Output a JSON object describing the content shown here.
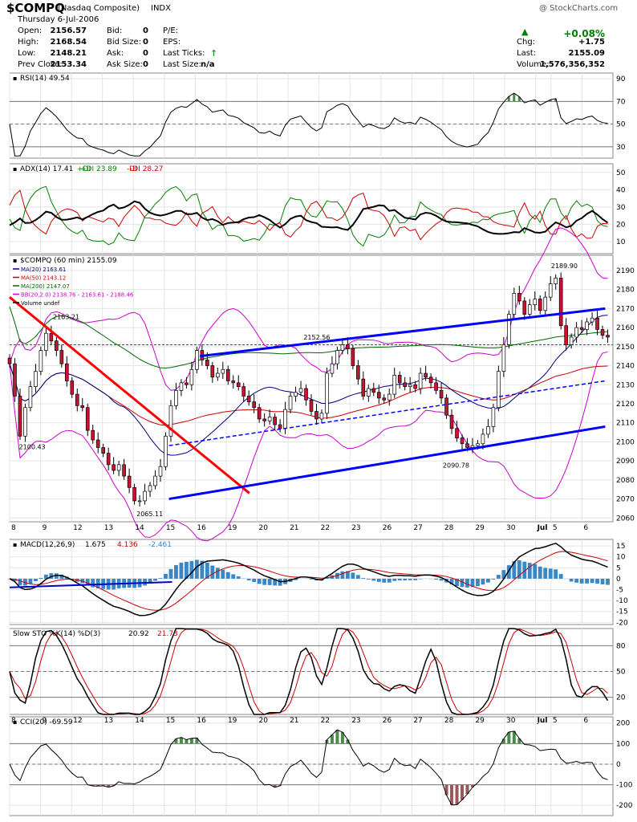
{
  "header": {
    "symbol": "$COMPQ",
    "name": "(Nasdaq Composite)",
    "exchange": "INDX",
    "watermark": "@ StockCharts.com",
    "date": "Thursday  6-Jul-2006",
    "quote_left": [
      {
        "label": "Open:",
        "value": "2156.57"
      },
      {
        "label": "High:",
        "value": "2168.54"
      },
      {
        "label": "Low:",
        "value": "2148.21"
      },
      {
        "label": "Prev Close:",
        "value": "2153.34"
      }
    ],
    "quote_mid": [
      {
        "label": "Bid:",
        "value": "0"
      },
      {
        "label": "Bid Size:",
        "value": "0"
      },
      {
        "label": "Ask:",
        "value": "0"
      },
      {
        "label": "Ask Size:",
        "value": "0"
      }
    ],
    "quote_right": [
      {
        "label": "P/E:",
        "value": ""
      },
      {
        "label": "EPS:",
        "value": ""
      },
      {
        "label": "Last Ticks:",
        "value": ""
      },
      {
        "label": "Last Size:",
        "value": "n/a"
      }
    ],
    "summary": {
      "pct_change": "+0.08%",
      "chg_label": "Chg:",
      "chg": "+1.75",
      "last_label": "Last:",
      "last": "2155.09",
      "volume_label": "Volume:",
      "volume": "1,576,356,352"
    },
    "colors": {
      "up": "#008000"
    }
  },
  "chart_data": [
    {
      "type": "line",
      "title": "RSI(14) 49.54",
      "yticks": [
        30,
        50,
        70,
        90
      ],
      "ylim": [
        20,
        95
      ],
      "reference_lines": [
        30,
        50,
        70
      ]
    },
    {
      "type": "line",
      "title": "ADX(14) 17.41",
      "series": [
        {
          "name": "+DI 23.89",
          "color": "#008000"
        },
        {
          "name": "-DI 28.27",
          "color": "#cc0000"
        }
      ],
      "yticks": [
        10,
        20,
        30,
        40,
        50
      ],
      "ylim": [
        3,
        55
      ]
    },
    {
      "type": "line",
      "title": "$COMPQ (60 min) 2155.09",
      "legend": [
        {
          "text": "MA(20) 2163.61",
          "color": "#000080"
        },
        {
          "text": "MA(50) 2143.12",
          "color": "#cc0000"
        },
        {
          "text": "MA(200) 2147.07",
          "color": "#006600"
        },
        {
          "text": "BB(20,2.0) 2138.76 - 2163.61 - 2188.46",
          "color": "#cc00cc"
        },
        {
          "text": "Volume undef",
          "color": "#000000"
        }
      ],
      "yticks": [
        2060,
        2070,
        2080,
        2090,
        2100,
        2110,
        2120,
        2130,
        2140,
        2150,
        2160,
        2170,
        2180,
        2190
      ],
      "ylim": [
        2058,
        2198
      ],
      "annotations": [
        {
          "text": "2163.21",
          "x": 2.8,
          "y": 2163.21
        },
        {
          "text": "2100.43",
          "x": 0.6,
          "y": 2100.43
        },
        {
          "text": "2065.11",
          "x": 8.2,
          "y": 2065.11
        },
        {
          "text": "2152.56",
          "x": 19.0,
          "y": 2152.56
        },
        {
          "text": "2090.78",
          "x": 28.0,
          "y": 2090.78
        },
        {
          "text": "2189.90",
          "x": 35.0,
          "y": 2189.9
        }
      ],
      "xticks": [
        "8",
        "9",
        "12",
        "13",
        "14",
        "15",
        "16",
        "19",
        "20",
        "21",
        "22",
        "23",
        "26",
        "27",
        "28",
        "29",
        "30",
        "Jul",
        "5",
        "6"
      ],
      "xtick_pos": [
        0,
        2,
        4,
        6,
        8,
        10,
        12,
        14,
        16,
        18,
        20,
        22,
        24,
        26,
        28,
        30,
        32,
        34,
        35,
        37
      ],
      "closes": [
        2141,
        2124,
        2103,
        2118,
        2129,
        2137,
        2148,
        2157,
        2153,
        2148,
        2141,
        2132,
        2125,
        2119,
        2118,
        2106,
        2101,
        2097,
        2094,
        2088,
        2085,
        2088,
        2082,
        2076,
        2069,
        2069,
        2074,
        2077,
        2082,
        2087,
        2103,
        2119,
        2127,
        2131,
        2130,
        2138,
        2148,
        2143,
        2140,
        2134,
        2136,
        2138,
        2132,
        2131,
        2129,
        2124,
        2121,
        2118,
        2112,
        2111,
        2113,
        2109,
        2107,
        2117,
        2124,
        2126,
        2128,
        2122,
        2116,
        2112,
        2115,
        2136,
        2141,
        2148,
        2151,
        2149,
        2140,
        2133,
        2124,
        2128,
        2126,
        2123,
        2122,
        2125,
        2135,
        2131,
        2129,
        2130,
        2128,
        2136,
        2134,
        2131,
        2127,
        2123,
        2114,
        2107,
        2102,
        2099,
        2097,
        2098,
        2099,
        2104,
        2108,
        2118,
        2137,
        2151,
        2167,
        2178,
        2174,
        2167,
        2172,
        2175,
        2169,
        2176,
        2183,
        2186,
        2161,
        2151,
        2155,
        2160,
        2159,
        2163,
        2165,
        2159,
        2156,
        2155
      ],
      "trendlines": [
        {
          "color": "#ff0000",
          "width": 3,
          "pts": [
            [
              0,
              2176
            ],
            [
              15.5,
              2073
            ]
          ]
        },
        {
          "color": "#0000ff",
          "width": 3,
          "pts": [
            [
              10.3,
              2070
            ],
            [
              38.5,
              2108
            ]
          ]
        },
        {
          "color": "#0000ff",
          "width": 3,
          "pts": [
            [
              12.3,
              2145
            ],
            [
              38.5,
              2170
            ]
          ]
        },
        {
          "color": "#0000ff",
          "width": 1.5,
          "dash": true,
          "pts": [
            [
              10.3,
              2098
            ],
            [
              38.5,
              2132
            ]
          ]
        }
      ]
    },
    {
      "type": "bar",
      "title": "MACD(12,26,9)",
      "series": [
        {
          "name": "1.675",
          "color": "#000000"
        },
        {
          "name": "4.136",
          "color": "#cc0000"
        },
        {
          "name": "-2.461",
          "color": "#3a87c6"
        }
      ],
      "yticks": [
        -20,
        -15,
        -10,
        -5,
        0,
        5,
        10,
        15
      ],
      "ylim": [
        -21,
        18
      ]
    },
    {
      "type": "line",
      "title": "Slow STO %K(14) %D(3)",
      "series": [
        {
          "name": "20.92",
          "color": "#000000"
        },
        {
          "name": "21.73",
          "color": "#cc0000"
        }
      ],
      "yticks": [
        20,
        50,
        80
      ],
      "ylim": [
        0,
        100
      ],
      "reference_lines": [
        20,
        50,
        80
      ],
      "xticks": [
        "8",
        "9",
        "12",
        "13",
        "14",
        "15",
        "16",
        "19",
        "20",
        "21",
        "22",
        "23",
        "26",
        "27",
        "28",
        "29",
        "30",
        "Jul",
        "5",
        "6"
      ]
    },
    {
      "type": "line",
      "title": "CCI(20) -69.59",
      "yticks": [
        -200,
        -100,
        0,
        100,
        200
      ],
      "ylim": [
        -250,
        230
      ],
      "reference_lines": [
        -100,
        0,
        100
      ]
    }
  ]
}
